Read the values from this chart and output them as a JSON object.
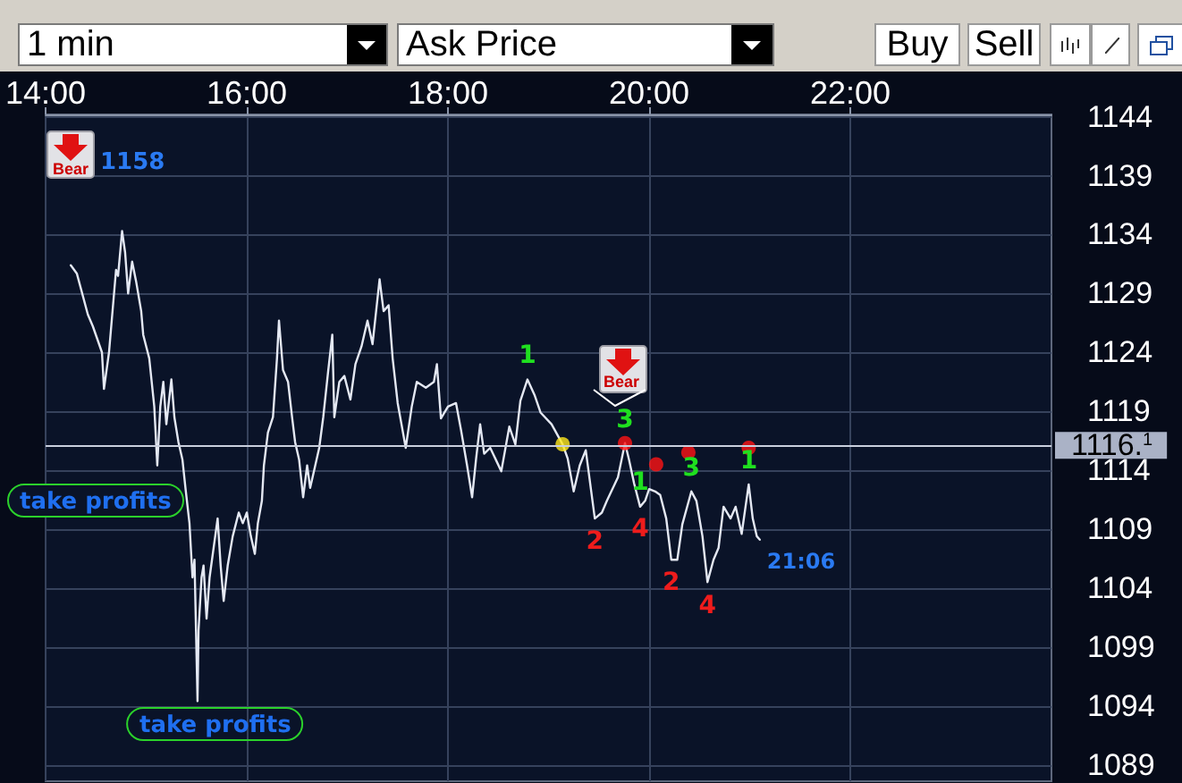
{
  "chart_data": {
    "type": "line",
    "series": [
      {
        "color": "#e4e8f2",
        "x": [
          14.25,
          14.31,
          14.42,
          14.47,
          14.56,
          14.58,
          14.63,
          14.7,
          14.72,
          14.76,
          14.79,
          14.82,
          14.86,
          14.9,
          14.95,
          14.97,
          15.03,
          15.08,
          15.11,
          15.14,
          15.17,
          15.2,
          15.25,
          15.28,
          15.32,
          15.36,
          15.39,
          15.43,
          15.46,
          15.48,
          15.51,
          15.52,
          15.55,
          15.57,
          15.6,
          15.63,
          15.67,
          15.71,
          15.74,
          15.77,
          15.81,
          15.86,
          15.92,
          15.96,
          16.0,
          16.04,
          16.08,
          16.11,
          16.15,
          16.17,
          16.21,
          16.26,
          16.3,
          16.32,
          16.36,
          16.41,
          16.45,
          16.48,
          16.52,
          16.56,
          16.6,
          16.63,
          16.67,
          16.72,
          16.76,
          16.81,
          16.85,
          16.87,
          16.92,
          16.97,
          17.03,
          17.08,
          17.14,
          17.2,
          17.25,
          17.32,
          17.36,
          17.41,
          17.45,
          17.5,
          17.58,
          17.64,
          17.69,
          17.78,
          17.86,
          17.89,
          17.93,
          18.0,
          18.08,
          18.13,
          18.19,
          18.24,
          18.28,
          18.32,
          18.36,
          18.42,
          18.47,
          18.53,
          18.61,
          18.67,
          18.72,
          18.79,
          18.86,
          18.92,
          19.03,
          19.14,
          19.19,
          19.25,
          19.31,
          19.37,
          19.46,
          19.53,
          19.58,
          19.69,
          19.76,
          19.8,
          19.85,
          19.91,
          19.96,
          20.0,
          20.06,
          20.11,
          20.17,
          20.22,
          20.28,
          20.33,
          20.42,
          20.47,
          20.53,
          20.58,
          20.64,
          20.69,
          20.74,
          20.81,
          20.86,
          20.92,
          20.99,
          21.03,
          21.07,
          21.1
        ],
        "values": [
          1131.4,
          1130.7,
          1127.2,
          1126.2,
          1124.0,
          1120.9,
          1124.0,
          1131.0,
          1130.5,
          1134.3,
          1132.5,
          1129.0,
          1131.7,
          1130.0,
          1127.5,
          1125.5,
          1123.5,
          1119.4,
          1114.4,
          1119.4,
          1121.5,
          1117.9,
          1121.7,
          1118.5,
          1116.4,
          1114.9,
          1112.5,
          1109.5,
          1104.9,
          1106.4,
          1094.4,
          1100.4,
          1104.9,
          1105.9,
          1101.4,
          1104.9,
          1107.4,
          1109.9,
          1105.9,
          1102.9,
          1105.9,
          1108.4,
          1110.4,
          1109.5,
          1110.4,
          1108.4,
          1106.9,
          1109.5,
          1111.4,
          1114.4,
          1117.2,
          1118.5,
          1123.5,
          1126.7,
          1122.5,
          1121.5,
          1118.5,
          1116.4,
          1114.9,
          1111.7,
          1114.4,
          1112.5,
          1114.0,
          1115.9,
          1118.5,
          1122.5,
          1125.5,
          1118.5,
          1121.5,
          1122.0,
          1120.0,
          1123.0,
          1124.5,
          1126.7,
          1124.7,
          1130.2,
          1127.5,
          1128.0,
          1123.5,
          1119.7,
          1115.9,
          1119.4,
          1121.5,
          1121.0,
          1121.5,
          1123.0,
          1118.4,
          1119.4,
          1119.7,
          1117.4,
          1114.4,
          1111.7,
          1115.0,
          1117.9,
          1115.4,
          1115.9,
          1115.0,
          1113.9,
          1117.7,
          1116.2,
          1119.9,
          1121.7,
          1120.4,
          1118.9,
          1117.9,
          1116.2,
          1115.0,
          1112.2,
          1114.4,
          1115.7,
          1109.9,
          1110.4,
          1111.4,
          1113.4,
          1116.3,
          1114.9,
          1112.9,
          1110.9,
          1111.4,
          1112.4,
          1112.2,
          1111.9,
          1109.9,
          1106.4,
          1106.4,
          1109.4,
          1112.2,
          1111.4,
          1108.4,
          1104.5,
          1106.4,
          1107.4,
          1110.9,
          1109.9,
          1110.9,
          1108.6,
          1112.8,
          1109.9,
          1108.4,
          1108.1
        ]
      },
      {
        "type": "scatter",
        "color": "#ffe81a",
        "marker": "circle",
        "x": [
          19.14
        ],
        "values": [
          1116.2
        ]
      },
      {
        "type": "scatter",
        "color": "#ff1414",
        "marker": "circle",
        "x": [
          19.76,
          20.07,
          20.39,
          20.99
        ],
        "values": [
          1116.3,
          1114.5,
          1115.5,
          1115.9
        ]
      }
    ],
    "xlim": [
      14,
      24
    ],
    "xticks": [
      {
        "value": 14,
        "label": "14:00"
      },
      {
        "value": 16,
        "label": "16:00"
      },
      {
        "value": 18,
        "label": "18:00"
      },
      {
        "value": 20,
        "label": "20:00"
      },
      {
        "value": 22,
        "label": "22:00"
      }
    ],
    "ylim": [
      1087.6,
      1144.2
    ],
    "yticks": [
      1089,
      1094,
      1099,
      1104,
      1109,
      1114,
      1119,
      1124,
      1129,
      1134,
      1139,
      1144
    ],
    "grid": true,
    "ref_lines": [
      {
        "axis": "y",
        "value": 1116.1,
        "label": "1116.$^{1}$",
        "color": "#c9cfdd"
      }
    ],
    "annotations": [
      "1 min",
      "Ask Price",
      "Buy",
      "Sell",
      "1158",
      "Bear",
      "Bear",
      "take profits",
      {
        "text": "take profits",
        "x": 15.51,
        "y": 1094.4
      },
      {
        "text": "21:06",
        "x": 21.1,
        "y": 1108.1
      },
      {
        "text": "1",
        "x": 18.79,
        "y": 1121.7
      },
      {
        "text": "2",
        "x": 19.46,
        "y": 1109.9
      },
      {
        "text": "3",
        "x": 19.76,
        "y": 1116.3
      },
      {
        "text": "4",
        "x": 19.91,
        "y": 1110.9
      },
      {
        "text": "1",
        "x": 19.91,
        "y": 1110.9
      },
      {
        "text": "2",
        "x": 20.22,
        "y": 1106.4
      },
      {
        "text": "3",
        "x": 20.42,
        "y": 1112.2
      },
      {
        "text": "4",
        "x": 20.58,
        "y": 1104.5
      },
      {
        "text": "1",
        "x": 20.99,
        "y": 1112.8
      }
    ]
  }
}
